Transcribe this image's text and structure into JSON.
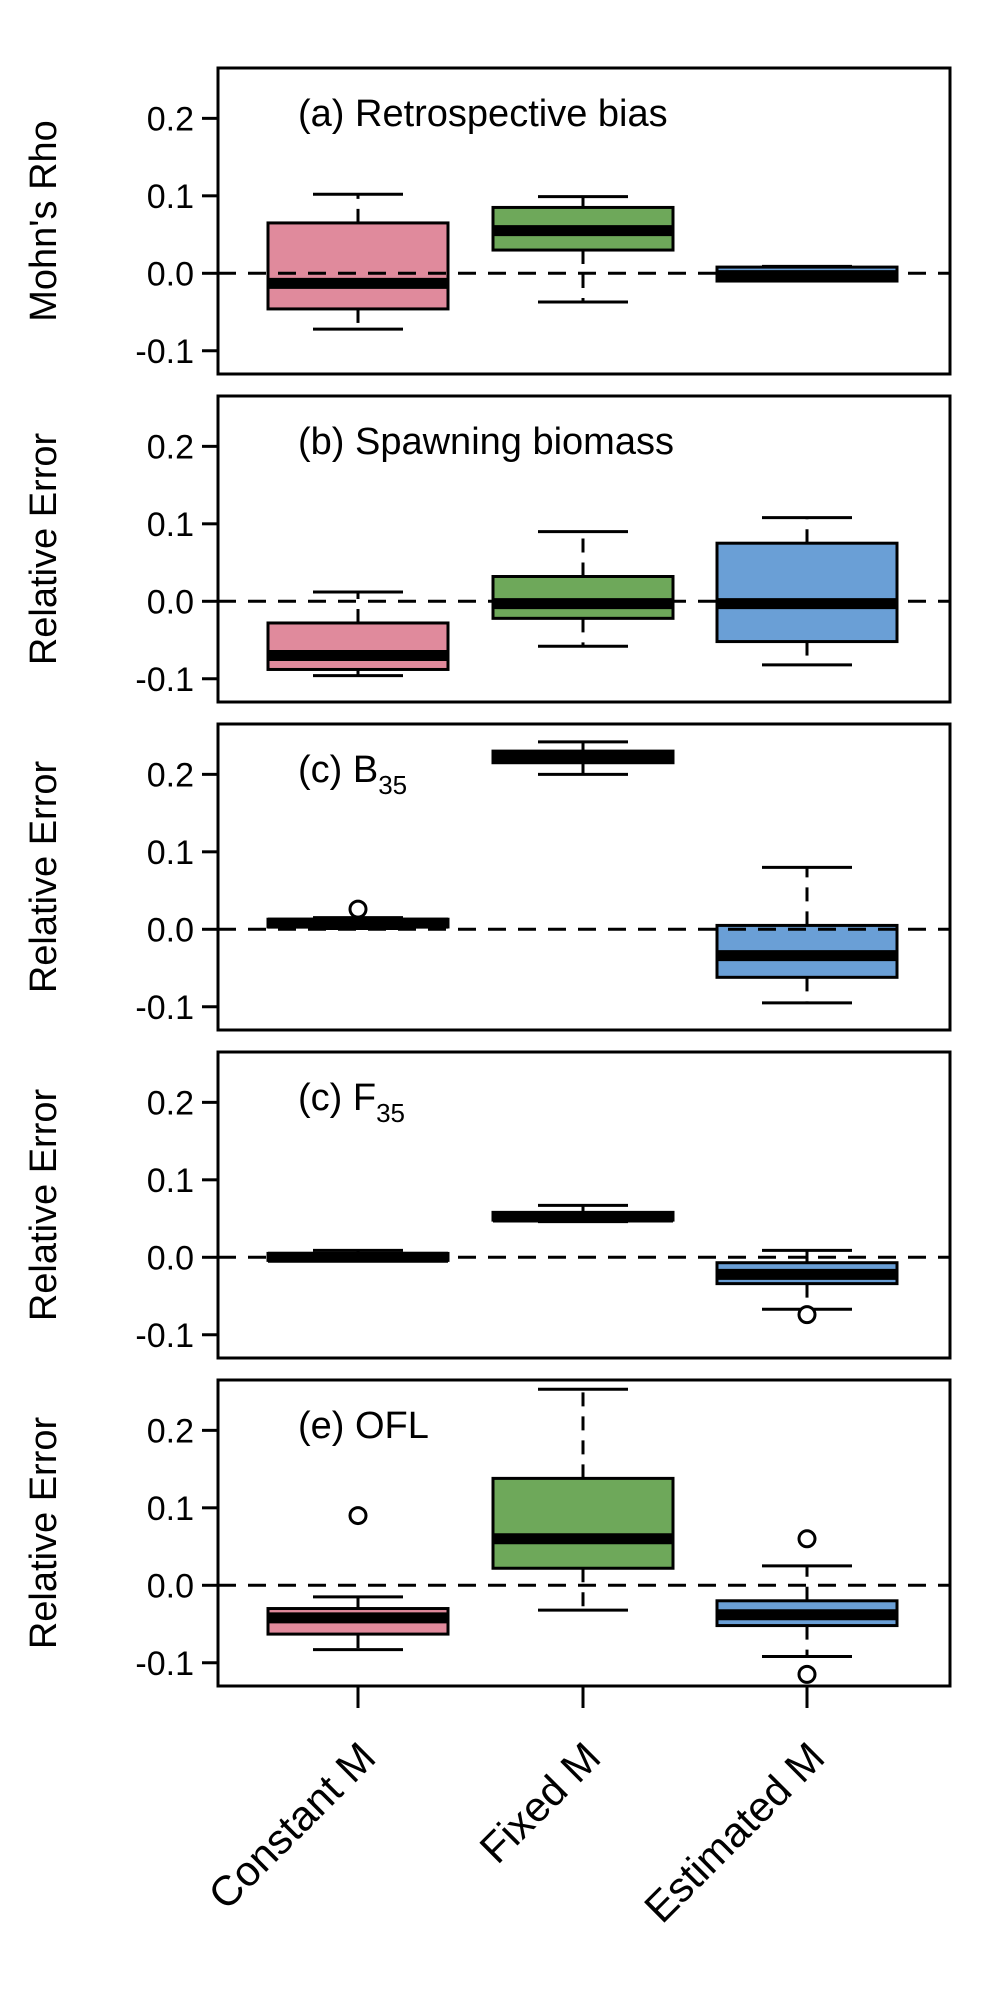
{
  "chart_data": {
    "type": "boxplot",
    "categories": [
      "Constant M",
      "Fixed M",
      "Estimated M"
    ],
    "colors": [
      "#e08a9c",
      "#6ea85a",
      "#6a9fd6"
    ],
    "yticks": [
      -0.1,
      0.0,
      0.1,
      0.2
    ],
    "ytick_labels": [
      "-0.1",
      "0.0",
      "0.1",
      "0.2"
    ],
    "ylim": [
      -0.13,
      0.265
    ],
    "reference_line": 0,
    "panels": [
      {
        "title": "(a) Retrospective bias",
        "title_sub": "",
        "ylabel": "Mohn's Rho",
        "boxes": [
          {
            "category": "Constant M",
            "whislo": -0.072,
            "q1": -0.046,
            "med": -0.013,
            "q3": 0.065,
            "whishi": 0.102,
            "fliers": []
          },
          {
            "category": "Fixed M",
            "whislo": -0.037,
            "q1": 0.03,
            "med": 0.055,
            "q3": 0.085,
            "whishi": 0.099,
            "fliers": []
          },
          {
            "category": "Estimated M",
            "whislo": -0.01,
            "q1": -0.01,
            "med": -0.003,
            "q3": 0.008,
            "whishi": 0.009,
            "fliers": []
          }
        ]
      },
      {
        "title": "(b) Spawning biomass",
        "title_sub": "",
        "ylabel": "Relative Error",
        "boxes": [
          {
            "category": "Constant M",
            "whislo": -0.096,
            "q1": -0.088,
            "med": -0.07,
            "q3": -0.028,
            "whishi": 0.012,
            "fliers": []
          },
          {
            "category": "Fixed M",
            "whislo": -0.058,
            "q1": -0.022,
            "med": -0.003,
            "q3": 0.032,
            "whishi": 0.09,
            "fliers": []
          },
          {
            "category": "Estimated M",
            "whislo": -0.082,
            "q1": -0.052,
            "med": -0.003,
            "q3": 0.075,
            "whishi": 0.108,
            "fliers": []
          }
        ]
      },
      {
        "title": "(c) B",
        "title_sub": "35",
        "ylabel": "Relative Error",
        "boxes": [
          {
            "category": "Constant M",
            "whislo": 0.001,
            "q1": 0.003,
            "med": 0.008,
            "q3": 0.013,
            "whishi": 0.015,
            "fliers": [
              0.026
            ]
          },
          {
            "category": "Fixed M",
            "whislo": 0.2,
            "q1": 0.215,
            "med": 0.222,
            "q3": 0.23,
            "whishi": 0.242,
            "fliers": []
          },
          {
            "category": "Estimated M",
            "whislo": -0.095,
            "q1": -0.062,
            "med": -0.034,
            "q3": 0.005,
            "whishi": 0.08,
            "fliers": []
          }
        ]
      },
      {
        "title": "(c) F",
        "title_sub": "35",
        "ylabel": "Relative Error",
        "boxes": [
          {
            "category": "Constant M",
            "whislo": -0.004,
            "q1": -0.004,
            "med": 0.0,
            "q3": 0.005,
            "whishi": 0.009,
            "fliers": []
          },
          {
            "category": "Fixed M",
            "whislo": 0.046,
            "q1": 0.048,
            "med": 0.052,
            "q3": 0.058,
            "whishi": 0.067,
            "fliers": []
          },
          {
            "category": "Estimated M",
            "whislo": -0.067,
            "q1": -0.034,
            "med": -0.022,
            "q3": -0.007,
            "whishi": 0.009,
            "fliers": [
              -0.074
            ]
          }
        ]
      },
      {
        "title": "(e) OFL",
        "title_sub": "",
        "ylabel": "Relative Error",
        "boxes": [
          {
            "category": "Constant M",
            "whislo": -0.083,
            "q1": -0.063,
            "med": -0.042,
            "q3": -0.03,
            "whishi": -0.015,
            "fliers": [
              0.09
            ]
          },
          {
            "category": "Fixed M",
            "whislo": -0.032,
            "q1": 0.022,
            "med": 0.06,
            "q3": 0.138,
            "whishi": 0.253,
            "fliers": []
          },
          {
            "category": "Estimated M",
            "whislo": -0.092,
            "q1": -0.052,
            "med": -0.038,
            "q3": -0.02,
            "whishi": 0.025,
            "fliers": [
              0.06,
              -0.115
            ]
          }
        ]
      }
    ]
  }
}
